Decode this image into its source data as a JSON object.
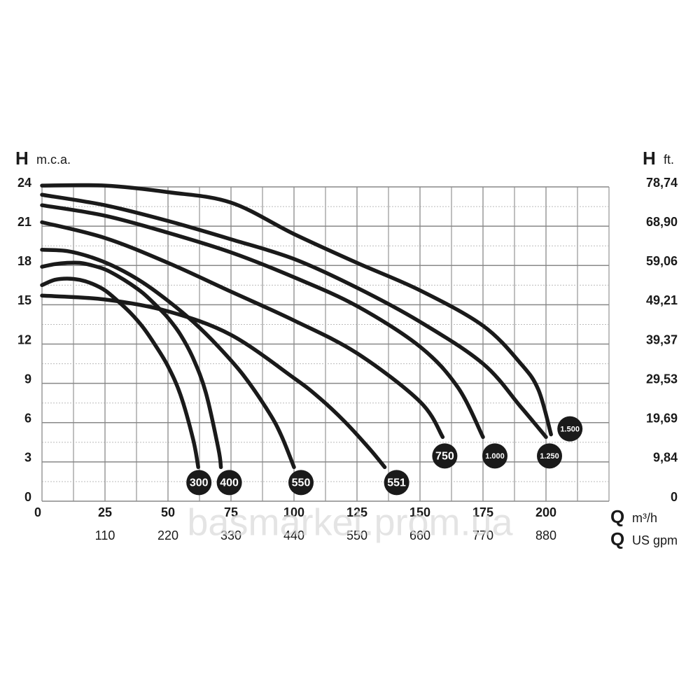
{
  "chart_data": {
    "type": "line",
    "y_label": {
      "symbol": "H",
      "unit": "m.c.a."
    },
    "y2_label": {
      "symbol": "H",
      "unit": "ft."
    },
    "x_label": {
      "symbol": "Q",
      "unit": "m³/h"
    },
    "x2_label": {
      "symbol": "Q",
      "unit": "US gpm"
    },
    "watermark": "basmarket.prom.ua",
    "xlim": [
      0,
      225
    ],
    "xticks": [
      0,
      25,
      50,
      75,
      100,
      125,
      150,
      175,
      200
    ],
    "x2lim": [
      0,
      990
    ],
    "x2ticks": [
      110,
      220,
      330,
      440,
      550,
      660,
      770,
      880
    ],
    "ylim": [
      0,
      24
    ],
    "yticks": [
      0,
      3,
      6,
      9,
      12,
      15,
      18,
      21,
      24
    ],
    "y2lim": [
      0,
      78.74
    ],
    "y2ticks": [
      0,
      {
        "value": 9.84,
        "label": "9,84"
      },
      {
        "value": 19.69,
        "label": "19,69"
      },
      {
        "value": 29.53,
        "label": "29,53"
      },
      {
        "value": 39.37,
        "label": "39,37"
      },
      {
        "value": 49.21,
        "label": "49,21"
      },
      {
        "value": 59.06,
        "label": "59,06"
      },
      {
        "value": 68.9,
        "label": "68,90"
      },
      {
        "value": 78.74,
        "label": "78,74"
      }
    ],
    "xgrid": [
      12.5,
      37.5,
      62.5,
      87.5,
      112.5,
      137.5,
      162.5,
      187.5,
      212.5,
      225
    ],
    "ygrid": [
      1.5,
      4.5,
      7.5,
      10.5,
      13.5,
      16.5,
      19.5,
      22.5
    ],
    "grid": true,
    "series": [
      {
        "name": "300",
        "color": "#1a1a1a",
        "x": [
          0,
          5,
          10,
          15,
          20,
          25,
          30,
          35,
          40,
          45,
          50,
          55,
          60,
          62
        ],
        "values": [
          16.5,
          16.9,
          17.0,
          16.9,
          16.6,
          16.1,
          15.3,
          14.4,
          13.3,
          11.9,
          10.3,
          8.1,
          4.7,
          2.6
        ]
      },
      {
        "name": "400",
        "color": "#1a1a1a",
        "x": [
          0,
          5,
          10,
          15,
          20,
          25,
          30,
          35,
          40,
          45,
          50,
          55,
          60,
          65,
          70,
          71
        ],
        "values": [
          17.9,
          18.1,
          18.2,
          18.2,
          18.0,
          17.7,
          17.2,
          16.6,
          15.9,
          15.0,
          14.0,
          12.7,
          10.9,
          8.3,
          4.0,
          2.6
        ]
      },
      {
        "name": "550",
        "color": "#1a1a1a",
        "x": [
          0,
          10,
          20,
          30,
          40,
          50,
          60,
          70,
          80,
          90,
          95,
          100
        ],
        "values": [
          19.2,
          19.1,
          18.6,
          17.8,
          16.7,
          15.3,
          13.7,
          11.8,
          9.6,
          6.8,
          5.0,
          2.6
        ]
      },
      {
        "name": "551",
        "color": "#1a1a1a",
        "x": [
          0,
          25,
          50,
          75,
          100,
          110,
          120,
          130,
          136
        ],
        "values": [
          15.7,
          15.4,
          14.5,
          12.7,
          9.4,
          7.9,
          6.1,
          4.0,
          2.6
        ]
      },
      {
        "name": "750",
        "color": "#1a1a1a",
        "x": [
          0,
          25,
          50,
          75,
          100,
          125,
          150,
          159
        ],
        "values": [
          21.3,
          20.1,
          18.2,
          16.0,
          13.8,
          11.3,
          7.6,
          4.9
        ]
      },
      {
        "name": "1.000",
        "color": "#1a1a1a",
        "x": [
          0,
          25,
          50,
          75,
          100,
          125,
          150,
          165,
          175
        ],
        "values": [
          22.6,
          21.8,
          20.5,
          19.0,
          17.1,
          14.9,
          11.8,
          8.7,
          4.9
        ]
      },
      {
        "name": "1.250",
        "color": "#1a1a1a",
        "x": [
          0,
          25,
          50,
          75,
          100,
          125,
          150,
          175,
          190,
          200
        ],
        "values": [
          23.4,
          22.6,
          21.4,
          20.0,
          18.5,
          16.3,
          13.7,
          10.5,
          7.2,
          4.9
        ]
      },
      {
        "name": "1.500",
        "color": "#1a1a1a",
        "x": [
          0,
          25,
          50,
          75,
          100,
          125,
          150,
          175,
          190,
          197,
          202
        ],
        "values": [
          24.1,
          24.1,
          23.6,
          22.8,
          20.4,
          18.2,
          16.1,
          13.4,
          10.5,
          8.5,
          5.1
        ]
      }
    ]
  }
}
